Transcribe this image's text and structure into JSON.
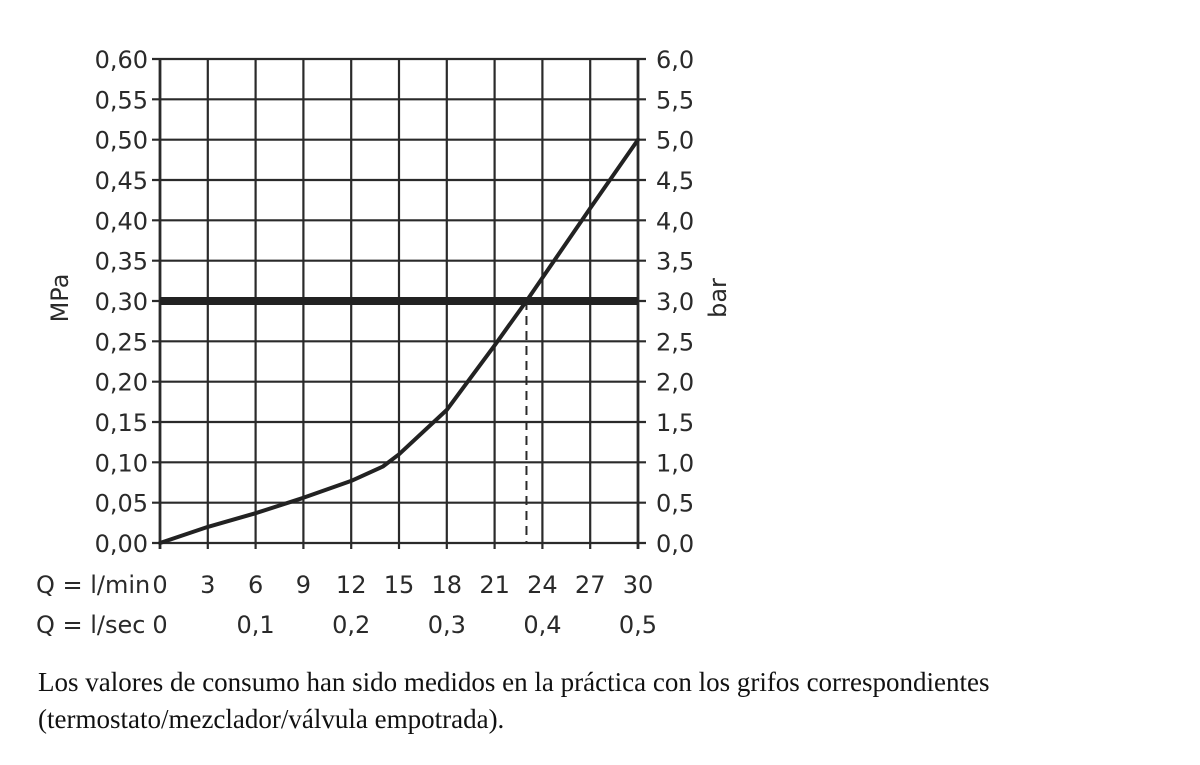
{
  "chart_data": {
    "type": "line",
    "ylabel": "MPa",
    "ylabel_right": "bar",
    "x_row_label_1": "Q = l/min",
    "x_row_label_2": "Q = l/sec",
    "ylim": [
      0,
      0.6
    ],
    "xlim": [
      0,
      30
    ],
    "y_ticks": [
      "0,00",
      "0,05",
      "0,10",
      "0,15",
      "0,20",
      "0,25",
      "0,30",
      "0,35",
      "0,40",
      "0,45",
      "0,50",
      "0,55",
      "0,60"
    ],
    "y_right_ticks": [
      "0,0",
      "0,5",
      "1,0",
      "1,5",
      "2,0",
      "2,5",
      "3,0",
      "3,5",
      "4,0",
      "4,5",
      "5,0",
      "5,5",
      "6,0"
    ],
    "x_ticks_lmin": [
      "0",
      "3",
      "6",
      "9",
      "12",
      "15",
      "18",
      "21",
      "24",
      "27",
      "30"
    ],
    "x_ticks_lsec": [
      "0",
      "0,1",
      "0,2",
      "0,3",
      "0,4",
      "0,5"
    ],
    "x_ticks_lsec_values": [
      0,
      6,
      12,
      18,
      24,
      30
    ],
    "grid": true,
    "series": [
      {
        "x": [
          0,
          3,
          6,
          9,
          12,
          14,
          15,
          18,
          21,
          23,
          27,
          30
        ],
        "y": [
          0,
          0.02,
          0.037,
          0.056,
          0.077,
          0.095,
          0.11,
          0.165,
          0.245,
          0.3,
          0.415,
          0.5
        ]
      }
    ],
    "reference_line": {
      "y": 0.3,
      "style": "bold"
    },
    "marker_line": {
      "x": 23,
      "y": 0.3,
      "style": "dashed"
    }
  },
  "note": {
    "text": "Los valores de consumo han sido medidos en la práctica con los grifos correspondientes (termostato/mezclador/válvula empotrada)."
  }
}
